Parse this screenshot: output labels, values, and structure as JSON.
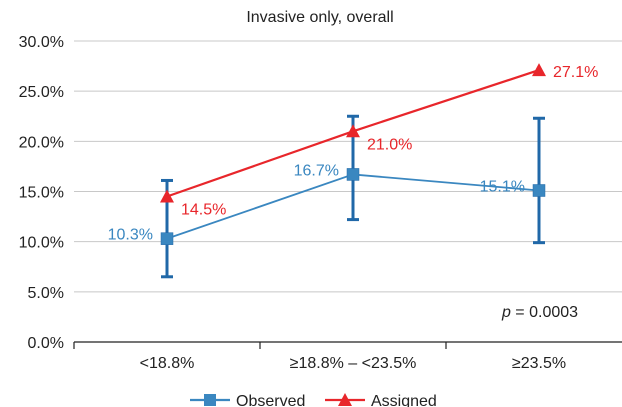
{
  "chart_data": {
    "type": "line",
    "title": "Invasive only, overall",
    "categories": [
      "<18.8%",
      "≥18.8% – <23.5%",
      "≥23.5%"
    ],
    "ylim": [
      0,
      30
    ],
    "yticks": [
      0,
      5,
      10,
      15,
      20,
      25,
      30
    ],
    "ytick_labels": [
      "0.0%",
      "5.0%",
      "10.0%",
      "15.0%",
      "20.0%",
      "25.0%",
      "30.0%"
    ],
    "grid": true,
    "legend_position": "bottom",
    "series": [
      {
        "name": "Observed",
        "color": "#3a87c0",
        "marker": "square",
        "values": [
          10.3,
          16.7,
          15.1
        ],
        "labels": [
          "10.3%",
          "16.7%",
          "15.1%"
        ],
        "error_low": [
          6.5,
          12.2,
          9.9
        ],
        "error_high": [
          16.1,
          22.5,
          22.3
        ]
      },
      {
        "name": "Assigned",
        "color": "#e8262b",
        "marker": "triangle",
        "values": [
          14.5,
          21.0,
          27.1
        ],
        "labels": [
          "14.5%",
          "21.0%",
          "27.1%"
        ]
      }
    ],
    "annotation": {
      "prefix": "p",
      "text": " = 0.0003"
    }
  }
}
